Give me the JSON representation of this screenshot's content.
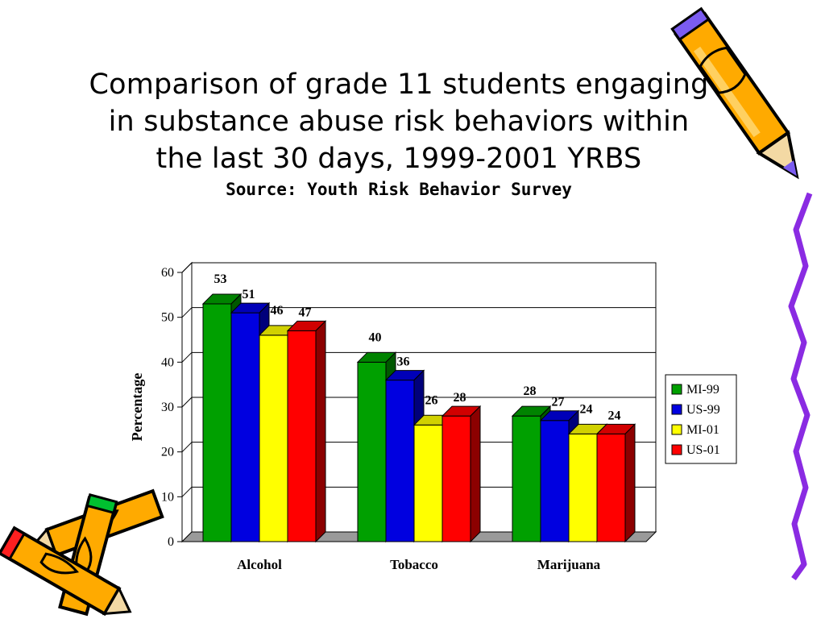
{
  "title_lines": [
    "Comparison of grade 11 students engaging",
    "in substance abuse risk behaviors within",
    "the last 30 days, 1999-2001 YRBS"
  ],
  "subtitle": "Source: Youth Risk Behavior Survey",
  "chart_data": {
    "type": "bar",
    "style": "3d-clustered",
    "categories": [
      "Alcohol",
      "Tobacco",
      "Marijuana"
    ],
    "series": [
      {
        "name": "MI-99",
        "values": [
          53,
          40,
          28
        ],
        "color": "#00a000"
      },
      {
        "name": "US-99",
        "values": [
          51,
          36,
          27
        ],
        "color": "#0000e0"
      },
      {
        "name": "MI-01",
        "values": [
          46,
          26,
          24
        ],
        "color": "#ffff00"
      },
      {
        "name": "US-01",
        "values": [
          47,
          28,
          24
        ],
        "color": "#ff0000"
      }
    ],
    "ylabel": "Percentage",
    "ylim": [
      0,
      60
    ],
    "yticks": [
      0,
      10,
      20,
      30,
      40,
      50,
      60
    ],
    "grid": true,
    "legend_position": "right"
  }
}
